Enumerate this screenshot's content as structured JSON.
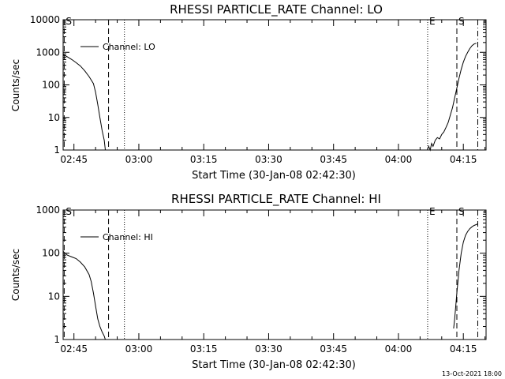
{
  "footer": {
    "timestamp": "13-Oct-2021 18:00"
  },
  "chart_data": [
    {
      "type": "line",
      "title": "RHESSI PARTICLE_RATE Channel: LO",
      "xlabel": "Start Time (30-Jan-08 02:42:30)",
      "ylabel": "Counts/sec",
      "xlim": [
        "02:42:30",
        "04:20:15"
      ],
      "ylim": [
        1,
        10000
      ],
      "y_scale": "log",
      "x_ticks": [
        "02:45",
        "03:00",
        "03:15",
        "03:30",
        "03:45",
        "04:00",
        "04:15"
      ],
      "y_ticks": [
        "1",
        "10",
        "100",
        "1000",
        "10000"
      ],
      "legend": {
        "label": "Channel: LO",
        "position": "top-left"
      },
      "markers": [
        {
          "label": "S",
          "time": "02:42:45",
          "style": "dashed"
        },
        {
          "label": "",
          "time": "02:53:00",
          "style": "dashed"
        },
        {
          "label": "",
          "time": "02:56:40",
          "style": "dotted"
        },
        {
          "label": "E",
          "time": "04:06:45",
          "style": "dotted"
        },
        {
          "label": "S",
          "time": "04:13:30",
          "style": "dashed"
        },
        {
          "label": "",
          "time": "04:18:20",
          "style": "dashdot"
        }
      ],
      "series": [
        {
          "name": "Channel: LO",
          "segments": [
            {
              "x": [
                "02:42:30",
                "02:43:30",
                "02:44:30",
                "02:45:30",
                "02:46:30",
                "02:47:30",
                "02:48:30",
                "02:49:30",
                "02:50:00",
                "02:50:30",
                "02:51:00",
                "02:51:30",
                "02:52:00",
                "02:52:15"
              ],
              "y": [
                850,
                720,
                600,
                480,
                380,
                270,
                180,
                110,
                60,
                25,
                10,
                4,
                2,
                1
              ]
            },
            {
              "x": [
                "04:06:40",
                "04:07:00",
                "04:07:20",
                "04:07:40",
                "04:08:00",
                "04:08:30",
                "04:09:00",
                "04:09:30",
                "04:10:00",
                "04:10:30",
                "04:11:00",
                "04:11:30",
                "04:12:00",
                "04:12:30",
                "04:13:00",
                "04:13:30",
                "04:14:00",
                "04:14:30",
                "04:15:00",
                "04:15:30",
                "04:16:00",
                "04:16:30",
                "04:17:00",
                "04:17:30",
                "04:18:00"
              ],
              "y": [
                1,
                1.3,
                1,
                1.6,
                1.3,
                2,
                2.4,
                2.2,
                3,
                3.6,
                5,
                7,
                12,
                20,
                40,
                80,
                160,
                300,
                500,
                750,
                1000,
                1300,
                1600,
                1800,
                1900
              ]
            }
          ]
        }
      ]
    },
    {
      "type": "line",
      "title": "RHESSI PARTICLE_RATE Channel: HI",
      "xlabel": "Start Time (30-Jan-08 02:42:30)",
      "ylabel": "Counts/sec",
      "xlim": [
        "02:42:30",
        "04:20:15"
      ],
      "ylim": [
        1,
        1000
      ],
      "y_scale": "log",
      "x_ticks": [
        "02:45",
        "03:00",
        "03:15",
        "03:30",
        "03:45",
        "04:00",
        "04:15"
      ],
      "y_ticks": [
        "1",
        "10",
        "100",
        "1000"
      ],
      "legend": {
        "label": "Channel: HI",
        "position": "top-left"
      },
      "markers": [
        {
          "label": "S",
          "time": "02:42:45",
          "style": "dashed"
        },
        {
          "label": "",
          "time": "02:53:00",
          "style": "dashed"
        },
        {
          "label": "",
          "time": "02:56:40",
          "style": "dotted"
        },
        {
          "label": "E",
          "time": "04:06:45",
          "style": "dotted"
        },
        {
          "label": "S",
          "time": "04:13:30",
          "style": "dashed"
        },
        {
          "label": "",
          "time": "04:18:20",
          "style": "dashdot"
        }
      ],
      "series": [
        {
          "name": "Channel: HI",
          "segments": [
            {
              "x": [
                "02:42:30",
                "02:43:30",
                "02:44:30",
                "02:45:30",
                "02:46:30",
                "02:47:30",
                "02:48:30",
                "02:49:00",
                "02:49:30",
                "02:50:00",
                "02:50:30",
                "02:51:00",
                "02:51:30",
                "02:52:00",
                "02:52:15"
              ],
              "y": [
                110,
                90,
                82,
                75,
                62,
                48,
                32,
                22,
                12,
                6,
                3,
                2,
                1.5,
                1.2,
                1
              ]
            },
            {
              "x": [
                "04:12:45",
                "04:13:00",
                "04:13:30",
                "04:14:00",
                "04:14:30",
                "04:15:00",
                "04:15:30",
                "04:16:00",
                "04:16:30",
                "04:17:00",
                "04:17:30",
                "04:18:00",
                "04:18:20"
              ],
              "y": [
                1.8,
                3,
                12,
                40,
                100,
                180,
                260,
                320,
                370,
                410,
                440,
                460,
                480
              ]
            }
          ]
        }
      ]
    }
  ]
}
